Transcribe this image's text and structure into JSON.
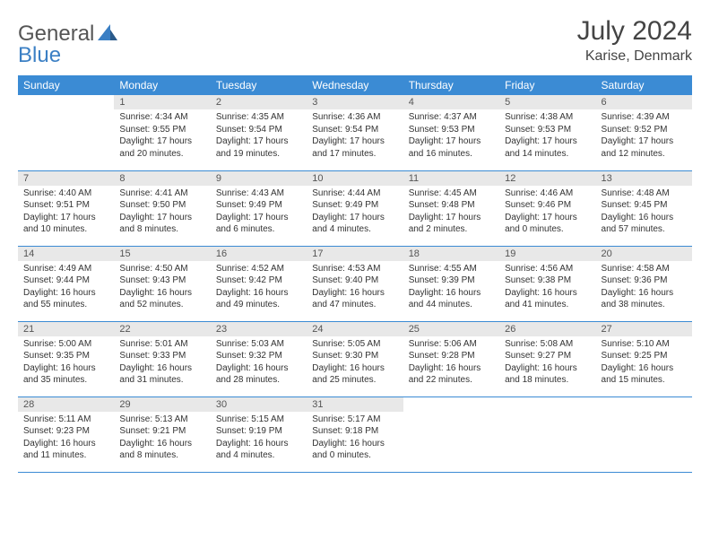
{
  "logo": {
    "general": "General",
    "blue": "Blue"
  },
  "title": "July 2024",
  "location": "Karise, Denmark",
  "colors": {
    "header_bg": "#3b8bd4",
    "header_text": "#ffffff",
    "daynum_bg": "#e8e8e8",
    "border": "#3b8bd4",
    "logo_blue": "#3b7fc4",
    "logo_text": "#555555"
  },
  "fonts": {
    "title_size": 30,
    "location_size": 16,
    "weekday_size": 12,
    "daynum_size": 11,
    "body_size": 10
  },
  "weekdays": [
    "Sunday",
    "Monday",
    "Tuesday",
    "Wednesday",
    "Thursday",
    "Friday",
    "Saturday"
  ],
  "weeks": [
    [
      {
        "empty": true,
        "day": "",
        "sunrise": "",
        "sunset": "",
        "daylight": ""
      },
      {
        "day": "1",
        "sunrise": "Sunrise: 4:34 AM",
        "sunset": "Sunset: 9:55 PM",
        "daylight": "Daylight: 17 hours and 20 minutes."
      },
      {
        "day": "2",
        "sunrise": "Sunrise: 4:35 AM",
        "sunset": "Sunset: 9:54 PM",
        "daylight": "Daylight: 17 hours and 19 minutes."
      },
      {
        "day": "3",
        "sunrise": "Sunrise: 4:36 AM",
        "sunset": "Sunset: 9:54 PM",
        "daylight": "Daylight: 17 hours and 17 minutes."
      },
      {
        "day": "4",
        "sunrise": "Sunrise: 4:37 AM",
        "sunset": "Sunset: 9:53 PM",
        "daylight": "Daylight: 17 hours and 16 minutes."
      },
      {
        "day": "5",
        "sunrise": "Sunrise: 4:38 AM",
        "sunset": "Sunset: 9:53 PM",
        "daylight": "Daylight: 17 hours and 14 minutes."
      },
      {
        "day": "6",
        "sunrise": "Sunrise: 4:39 AM",
        "sunset": "Sunset: 9:52 PM",
        "daylight": "Daylight: 17 hours and 12 minutes."
      }
    ],
    [
      {
        "day": "7",
        "sunrise": "Sunrise: 4:40 AM",
        "sunset": "Sunset: 9:51 PM",
        "daylight": "Daylight: 17 hours and 10 minutes."
      },
      {
        "day": "8",
        "sunrise": "Sunrise: 4:41 AM",
        "sunset": "Sunset: 9:50 PM",
        "daylight": "Daylight: 17 hours and 8 minutes."
      },
      {
        "day": "9",
        "sunrise": "Sunrise: 4:43 AM",
        "sunset": "Sunset: 9:49 PM",
        "daylight": "Daylight: 17 hours and 6 minutes."
      },
      {
        "day": "10",
        "sunrise": "Sunrise: 4:44 AM",
        "sunset": "Sunset: 9:49 PM",
        "daylight": "Daylight: 17 hours and 4 minutes."
      },
      {
        "day": "11",
        "sunrise": "Sunrise: 4:45 AM",
        "sunset": "Sunset: 9:48 PM",
        "daylight": "Daylight: 17 hours and 2 minutes."
      },
      {
        "day": "12",
        "sunrise": "Sunrise: 4:46 AM",
        "sunset": "Sunset: 9:46 PM",
        "daylight": "Daylight: 17 hours and 0 minutes."
      },
      {
        "day": "13",
        "sunrise": "Sunrise: 4:48 AM",
        "sunset": "Sunset: 9:45 PM",
        "daylight": "Daylight: 16 hours and 57 minutes."
      }
    ],
    [
      {
        "day": "14",
        "sunrise": "Sunrise: 4:49 AM",
        "sunset": "Sunset: 9:44 PM",
        "daylight": "Daylight: 16 hours and 55 minutes."
      },
      {
        "day": "15",
        "sunrise": "Sunrise: 4:50 AM",
        "sunset": "Sunset: 9:43 PM",
        "daylight": "Daylight: 16 hours and 52 minutes."
      },
      {
        "day": "16",
        "sunrise": "Sunrise: 4:52 AM",
        "sunset": "Sunset: 9:42 PM",
        "daylight": "Daylight: 16 hours and 49 minutes."
      },
      {
        "day": "17",
        "sunrise": "Sunrise: 4:53 AM",
        "sunset": "Sunset: 9:40 PM",
        "daylight": "Daylight: 16 hours and 47 minutes."
      },
      {
        "day": "18",
        "sunrise": "Sunrise: 4:55 AM",
        "sunset": "Sunset: 9:39 PM",
        "daylight": "Daylight: 16 hours and 44 minutes."
      },
      {
        "day": "19",
        "sunrise": "Sunrise: 4:56 AM",
        "sunset": "Sunset: 9:38 PM",
        "daylight": "Daylight: 16 hours and 41 minutes."
      },
      {
        "day": "20",
        "sunrise": "Sunrise: 4:58 AM",
        "sunset": "Sunset: 9:36 PM",
        "daylight": "Daylight: 16 hours and 38 minutes."
      }
    ],
    [
      {
        "day": "21",
        "sunrise": "Sunrise: 5:00 AM",
        "sunset": "Sunset: 9:35 PM",
        "daylight": "Daylight: 16 hours and 35 minutes."
      },
      {
        "day": "22",
        "sunrise": "Sunrise: 5:01 AM",
        "sunset": "Sunset: 9:33 PM",
        "daylight": "Daylight: 16 hours and 31 minutes."
      },
      {
        "day": "23",
        "sunrise": "Sunrise: 5:03 AM",
        "sunset": "Sunset: 9:32 PM",
        "daylight": "Daylight: 16 hours and 28 minutes."
      },
      {
        "day": "24",
        "sunrise": "Sunrise: 5:05 AM",
        "sunset": "Sunset: 9:30 PM",
        "daylight": "Daylight: 16 hours and 25 minutes."
      },
      {
        "day": "25",
        "sunrise": "Sunrise: 5:06 AM",
        "sunset": "Sunset: 9:28 PM",
        "daylight": "Daylight: 16 hours and 22 minutes."
      },
      {
        "day": "26",
        "sunrise": "Sunrise: 5:08 AM",
        "sunset": "Sunset: 9:27 PM",
        "daylight": "Daylight: 16 hours and 18 minutes."
      },
      {
        "day": "27",
        "sunrise": "Sunrise: 5:10 AM",
        "sunset": "Sunset: 9:25 PM",
        "daylight": "Daylight: 16 hours and 15 minutes."
      }
    ],
    [
      {
        "day": "28",
        "sunrise": "Sunrise: 5:11 AM",
        "sunset": "Sunset: 9:23 PM",
        "daylight": "Daylight: 16 hours and 11 minutes."
      },
      {
        "day": "29",
        "sunrise": "Sunrise: 5:13 AM",
        "sunset": "Sunset: 9:21 PM",
        "daylight": "Daylight: 16 hours and 8 minutes."
      },
      {
        "day": "30",
        "sunrise": "Sunrise: 5:15 AM",
        "sunset": "Sunset: 9:19 PM",
        "daylight": "Daylight: 16 hours and 4 minutes."
      },
      {
        "day": "31",
        "sunrise": "Sunrise: 5:17 AM",
        "sunset": "Sunset: 9:18 PM",
        "daylight": "Daylight: 16 hours and 0 minutes."
      },
      {
        "empty": true,
        "day": "",
        "sunrise": "",
        "sunset": "",
        "daylight": ""
      },
      {
        "empty": true,
        "day": "",
        "sunrise": "",
        "sunset": "",
        "daylight": ""
      },
      {
        "empty": true,
        "day": "",
        "sunrise": "",
        "sunset": "",
        "daylight": ""
      }
    ]
  ]
}
